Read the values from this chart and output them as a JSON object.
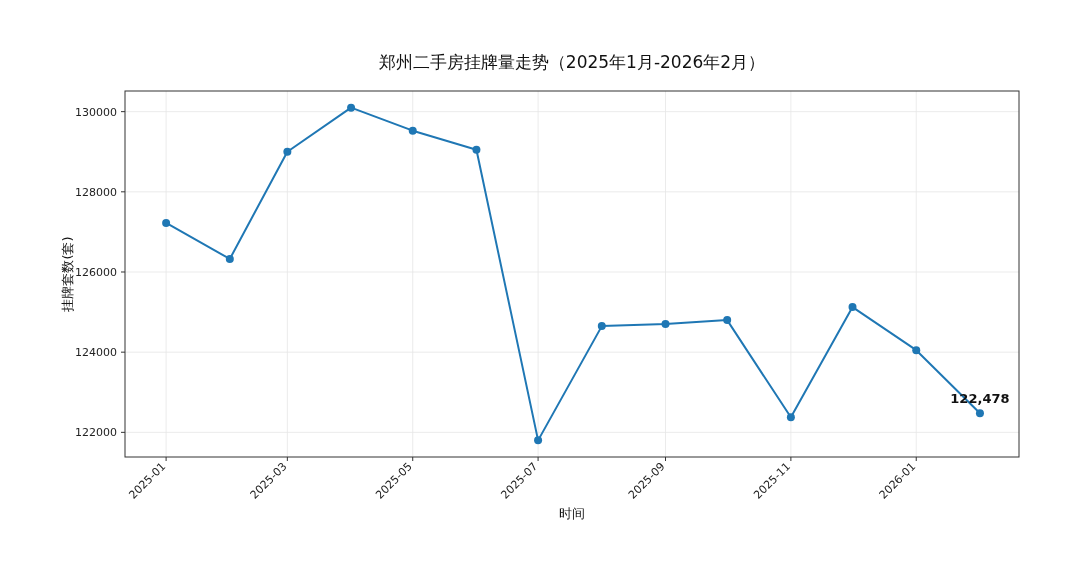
{
  "chart_data": {
    "type": "line",
    "title": "郑州二手房挂牌量走势（2025年1月-2026年2月）",
    "xlabel": "时间",
    "ylabel": "挂牌套数(套)",
    "x": [
      "2025-01",
      "2025-02",
      "2025-03",
      "2025-04",
      "2025-05",
      "2025-06",
      "2025-07",
      "2025-08",
      "2025-09",
      "2025-10",
      "2025-11",
      "2025-12",
      "2026-01",
      "2026-02"
    ],
    "series": [
      {
        "color": "#1f77b4",
        "values": [
          127225,
          126325,
          129000,
          130100,
          129525,
          129050,
          121800,
          124650,
          124700,
          124800,
          122375,
          125125,
          124050,
          122478
        ]
      }
    ],
    "xlim": [
      "2024-12-12",
      "2026-02-20"
    ],
    "xticks": [
      "2025-01",
      "2025-03",
      "2025-05",
      "2025-07",
      "2025-09",
      "2025-11",
      "2026-01"
    ],
    "ylim": [
      121385,
      130515
    ],
    "yticks": [
      122000,
      124000,
      126000,
      128000,
      130000
    ],
    "grid": true,
    "marker": "circle",
    "annotations": [
      {
        "text": "122,478",
        "x": "2026-02",
        "y": 122478
      }
    ]
  }
}
